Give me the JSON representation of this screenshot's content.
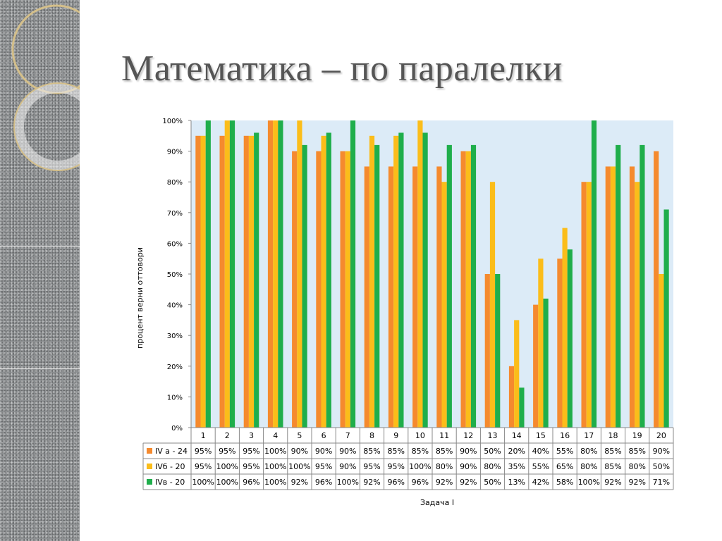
{
  "slide": {
    "title": "Математика – по паралелки"
  },
  "colors": {
    "plot_background": "#dcebf7",
    "strip_gray": "#8f9294"
  },
  "chart_data": {
    "type": "bar",
    "title": "",
    "xlabel": "Задача I",
    "ylabel": "процент верни оттовори",
    "ylim": [
      0,
      100
    ],
    "y_format": "percent",
    "y_ticks": [
      "0%",
      "10%",
      "20%",
      "30%",
      "40%",
      "50%",
      "60%",
      "70%",
      "80%",
      "90%",
      "100%"
    ],
    "grid": false,
    "legend": "data-table",
    "categories": [
      "1",
      "2",
      "3",
      "4",
      "5",
      "6",
      "7",
      "8",
      "9",
      "10",
      "11",
      "12",
      "13",
      "14",
      "15",
      "16",
      "17",
      "18",
      "19",
      "20"
    ],
    "series": [
      {
        "name": "IV а - 24",
        "color": "#f58a2e",
        "values": [
          95,
          95,
          95,
          100,
          90,
          90,
          90,
          85,
          85,
          85,
          85,
          90,
          50,
          20,
          40,
          55,
          80,
          85,
          85,
          90
        ],
        "labels": [
          "95%",
          "95%",
          "95%",
          "100%",
          "90%",
          "90%",
          "90%",
          "85%",
          "85%",
          "85%",
          "85%",
          "90%",
          "50%",
          "20%",
          "40%",
          "55%",
          "80%",
          "85%",
          "85%",
          "90%"
        ]
      },
      {
        "name": "IVб - 20",
        "color": "#fbbd1a",
        "values": [
          95,
          100,
          95,
          100,
          100,
          95,
          90,
          95,
          95,
          100,
          80,
          90,
          80,
          35,
          55,
          65,
          80,
          85,
          80,
          50
        ],
        "labels": [
          "95%",
          "100%",
          "95%",
          "100%",
          "100%",
          "95%",
          "90%",
          "95%",
          "95%",
          "100%",
          "80%",
          "90%",
          "80%",
          "35%",
          "55%",
          "65%",
          "80%",
          "85%",
          "80%",
          "50%"
        ]
      },
      {
        "name": "IVв - 20",
        "color": "#1fae4b",
        "values": [
          100,
          100,
          96,
          100,
          92,
          96,
          100,
          92,
          96,
          96,
          92,
          92,
          50,
          13,
          42,
          58,
          100,
          92,
          92,
          71
        ],
        "labels": [
          "100%",
          "100%",
          "96%",
          "100%",
          "92%",
          "96%",
          "100%",
          "92%",
          "96%",
          "96%",
          "92%",
          "92%",
          "50%",
          "13%",
          "42%",
          "58%",
          "100%",
          "92%",
          "92%",
          "71%"
        ]
      }
    ]
  }
}
